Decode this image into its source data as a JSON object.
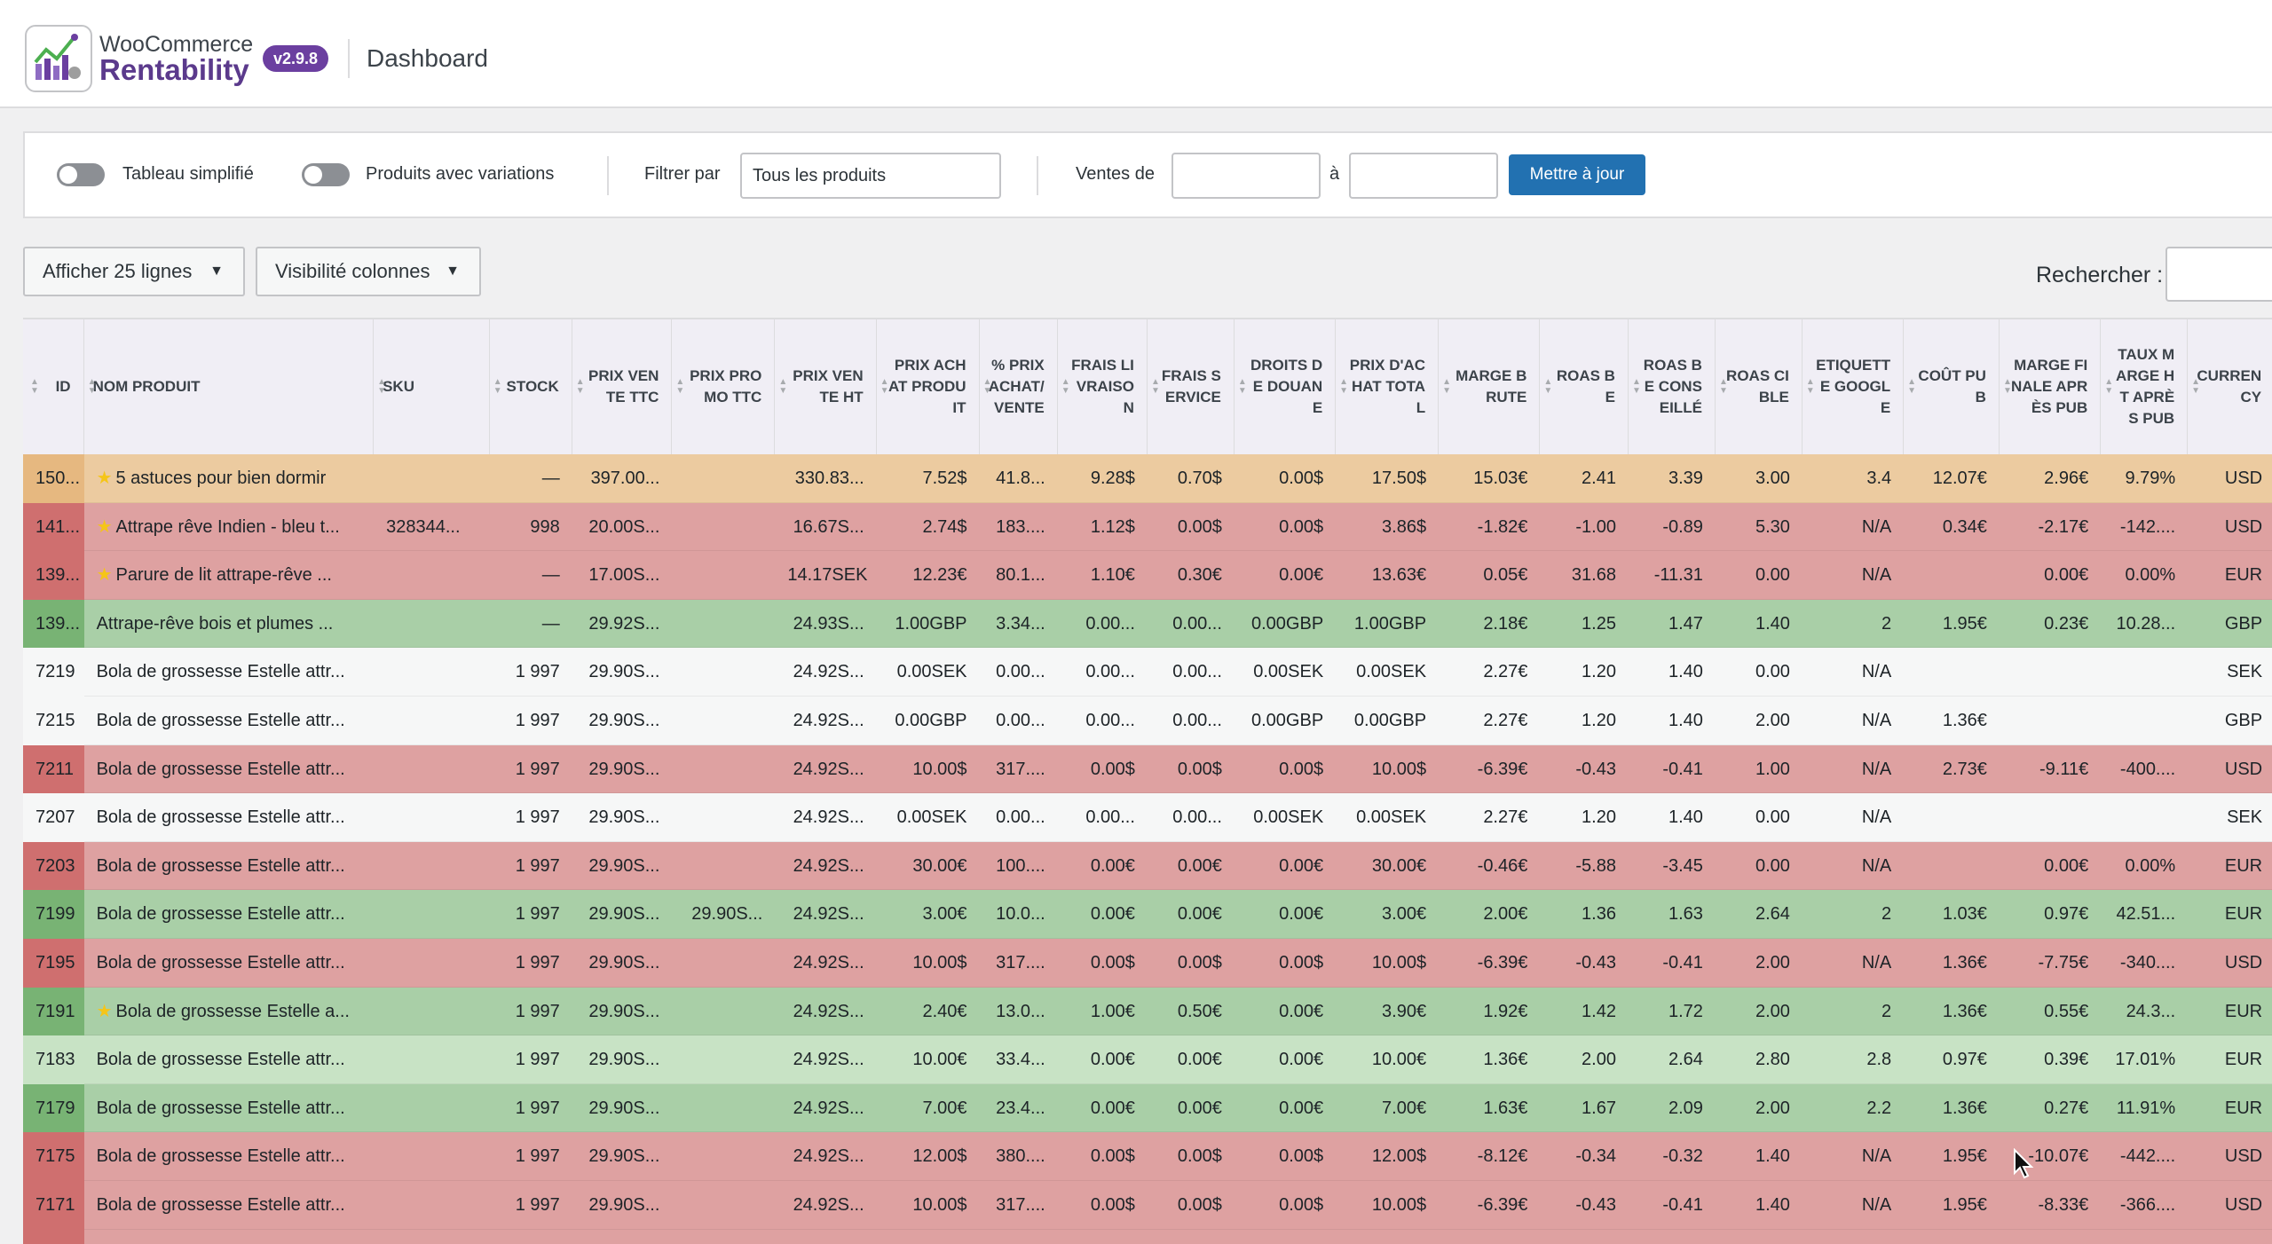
{
  "header": {
    "brand_top": "WooCommerce",
    "brand_bottom": "Rentability",
    "version": "v2.9.8",
    "page_title": "Dashboard"
  },
  "filters": {
    "toggle_simple": "Tableau simplifié",
    "toggle_variations": "Produits avec variations",
    "filter_label": "Filtrer par",
    "filter_value": "Tous les produits",
    "sales_from": "Ventes de",
    "sales_to": "à",
    "update_button": "Mettre à jour"
  },
  "controls": {
    "show_rows": "Afficher 25 lignes",
    "columns_visibility": "Visibilité colonnes",
    "search_label": "Rechercher :"
  },
  "colors": {
    "orange_row": "#eccba0",
    "red_row": "#dea1a1",
    "red_id": "#cf6f6f",
    "green_row": "#a9cfa7",
    "green_id": "#78b374",
    "lightgreen_row": "#c8e3c5",
    "white_row": "#f6f7f7",
    "brand": "#6b3fa0",
    "primary": "#2271b1"
  },
  "columns": [
    "ID",
    "NOM PRODUIT",
    "SKU",
    "STOCK",
    "PRIX VENTE TTC",
    "PRIX PROMO TTC",
    "PRIX VENTE HT",
    "PRIX ACHAT PRODUIT",
    "% PRIX ACHAT/VENTE",
    "FRAIS LIVRAISON",
    "FRAIS SERVICE",
    "DROITS DE DOUANE",
    "PRIX D'ACHAT TOTAL",
    "MARGE BRUTE",
    "ROAS BE",
    "ROAS BE CONSEILLÉ",
    "ROAS CIBLE",
    "ETIQUETTE GOOGLE",
    "COÛT PUB",
    "MARGE FINALE APRÈS PUB",
    "TAUX MARGE HT APRÈS PUB",
    "CURRENCY"
  ],
  "rows": [
    {
      "color": "orange",
      "star": true,
      "cells": [
        "150...",
        "5 astuces pour bien dormir",
        "",
        "—",
        "397.00...",
        "",
        "330.83...",
        "7.52$",
        "41.8...",
        "9.28$",
        "0.70$",
        "0.00$",
        "17.50$",
        "15.03€",
        "2.41",
        "3.39",
        "3.00",
        "3.4",
        "12.07€",
        "2.96€",
        "9.79%",
        "USD"
      ]
    },
    {
      "color": "red",
      "star": true,
      "cells": [
        "141...",
        "Attrape rêve Indien - bleu t...",
        "328344...",
        "998",
        "20.00S...",
        "",
        "16.67S...",
        "2.74$",
        "183....",
        "1.12$",
        "0.00$",
        "0.00$",
        "3.86$",
        "-1.82€",
        "-1.00",
        "-0.89",
        "5.30",
        "N/A",
        "0.34€",
        "-2.17€",
        "-142....",
        "USD"
      ]
    },
    {
      "color": "red",
      "star": true,
      "cells": [
        "139...",
        "Parure de lit attrape-rêve ...",
        "",
        "—",
        "17.00S...",
        "",
        "14.17SEK",
        "12.23€",
        "80.1...",
        "1.10€",
        "0.30€",
        "0.00€",
        "13.63€",
        "0.05€",
        "31.68",
        "-11.31",
        "0.00",
        "N/A",
        "",
        "0.00€",
        "0.00%",
        "EUR"
      ]
    },
    {
      "color": "green",
      "star": false,
      "cells": [
        "139...",
        "Attrape-rêve bois et plumes ...",
        "",
        "—",
        "29.92S...",
        "",
        "24.93S...",
        "1.00GBP",
        "3.34...",
        "0.00...",
        "0.00...",
        "0.00GBP",
        "1.00GBP",
        "2.18€",
        "1.25",
        "1.47",
        "1.40",
        "2",
        "1.95€",
        "0.23€",
        "10.28...",
        "GBP"
      ]
    },
    {
      "color": "white",
      "star": false,
      "cells": [
        "7219",
        "Bola de grossesse Estelle attr...",
        "",
        "1 997",
        "29.90S...",
        "",
        "24.92S...",
        "0.00SEK",
        "0.00...",
        "0.00...",
        "0.00...",
        "0.00SEK",
        "0.00SEK",
        "2.27€",
        "1.20",
        "1.40",
        "0.00",
        "N/A",
        "",
        "",
        "",
        "SEK"
      ]
    },
    {
      "color": "white",
      "star": false,
      "cells": [
        "7215",
        "Bola de grossesse Estelle attr...",
        "",
        "1 997",
        "29.90S...",
        "",
        "24.92S...",
        "0.00GBP",
        "0.00...",
        "0.00...",
        "0.00...",
        "0.00GBP",
        "0.00GBP",
        "2.27€",
        "1.20",
        "1.40",
        "2.00",
        "N/A",
        "1.36€",
        "",
        "",
        "GBP"
      ]
    },
    {
      "color": "red",
      "star": false,
      "cells": [
        "7211",
        "Bola de grossesse Estelle attr...",
        "",
        "1 997",
        "29.90S...",
        "",
        "24.92S...",
        "10.00$",
        "317....",
        "0.00$",
        "0.00$",
        "0.00$",
        "10.00$",
        "-6.39€",
        "-0.43",
        "-0.41",
        "1.00",
        "N/A",
        "2.73€",
        "-9.11€",
        "-400....",
        "USD"
      ]
    },
    {
      "color": "white",
      "star": false,
      "cells": [
        "7207",
        "Bola de grossesse Estelle attr...",
        "",
        "1 997",
        "29.90S...",
        "",
        "24.92S...",
        "0.00SEK",
        "0.00...",
        "0.00...",
        "0.00...",
        "0.00SEK",
        "0.00SEK",
        "2.27€",
        "1.20",
        "1.40",
        "0.00",
        "N/A",
        "",
        "",
        "",
        "SEK"
      ]
    },
    {
      "color": "red",
      "star": false,
      "cells": [
        "7203",
        "Bola de grossesse Estelle attr...",
        "",
        "1 997",
        "29.90S...",
        "",
        "24.92S...",
        "30.00€",
        "100....",
        "0.00€",
        "0.00€",
        "0.00€",
        "30.00€",
        "-0.46€",
        "-5.88",
        "-3.45",
        "0.00",
        "N/A",
        "",
        "0.00€",
        "0.00%",
        "EUR"
      ]
    },
    {
      "color": "green",
      "star": false,
      "cells": [
        "7199",
        "Bola de grossesse Estelle attr...",
        "",
        "1 997",
        "29.90S...",
        "29.90S...",
        "24.92S...",
        "3.00€",
        "10.0...",
        "0.00€",
        "0.00€",
        "0.00€",
        "3.00€",
        "2.00€",
        "1.36",
        "1.63",
        "2.64",
        "2",
        "1.03€",
        "0.97€",
        "42.51...",
        "EUR"
      ]
    },
    {
      "color": "red",
      "star": false,
      "cells": [
        "7195",
        "Bola de grossesse Estelle attr...",
        "",
        "1 997",
        "29.90S...",
        "",
        "24.92S...",
        "10.00$",
        "317....",
        "0.00$",
        "0.00$",
        "0.00$",
        "10.00$",
        "-6.39€",
        "-0.43",
        "-0.41",
        "2.00",
        "N/A",
        "1.36€",
        "-7.75€",
        "-340....",
        "USD"
      ]
    },
    {
      "color": "green",
      "star": true,
      "cells": [
        "7191",
        "Bola de grossesse Estelle a...",
        "",
        "1 997",
        "29.90S...",
        "",
        "24.92S...",
        "2.40€",
        "13.0...",
        "1.00€",
        "0.50€",
        "0.00€",
        "3.90€",
        "1.92€",
        "1.42",
        "1.72",
        "2.00",
        "2",
        "1.36€",
        "0.55€",
        "24.3...",
        "EUR"
      ]
    },
    {
      "color": "lightgreen",
      "star": false,
      "cells": [
        "7183",
        "Bola de grossesse Estelle attr...",
        "",
        "1 997",
        "29.90S...",
        "",
        "24.92S...",
        "10.00€",
        "33.4...",
        "0.00€",
        "0.00€",
        "0.00€",
        "10.00€",
        "1.36€",
        "2.00",
        "2.64",
        "2.80",
        "2.8",
        "0.97€",
        "0.39€",
        "17.01%",
        "EUR"
      ]
    },
    {
      "color": "green",
      "star": false,
      "cells": [
        "7179",
        "Bola de grossesse Estelle attr...",
        "",
        "1 997",
        "29.90S...",
        "",
        "24.92S...",
        "7.00€",
        "23.4...",
        "0.00€",
        "0.00€",
        "0.00€",
        "7.00€",
        "1.63€",
        "1.67",
        "2.09",
        "2.00",
        "2.2",
        "1.36€",
        "0.27€",
        "11.91%",
        "EUR"
      ]
    },
    {
      "color": "red",
      "star": false,
      "cells": [
        "7175",
        "Bola de grossesse Estelle attr...",
        "",
        "1 997",
        "29.90S...",
        "",
        "24.92S...",
        "12.00$",
        "380....",
        "0.00$",
        "0.00$",
        "0.00$",
        "12.00$",
        "-8.12€",
        "-0.34",
        "-0.32",
        "1.40",
        "N/A",
        "1.95€",
        "-10.07€",
        "-442....",
        "USD"
      ]
    },
    {
      "color": "red",
      "star": false,
      "cells": [
        "7171",
        "Bola de grossesse Estelle attr...",
        "",
        "1 997",
        "29.90S...",
        "",
        "24.92S...",
        "10.00$",
        "317....",
        "0.00$",
        "0.00$",
        "0.00$",
        "10.00$",
        "-6.39€",
        "-0.43",
        "-0.41",
        "1.40",
        "N/A",
        "1.95€",
        "-8.33€",
        "-366....",
        "USD"
      ]
    },
    {
      "color": "red",
      "star": false,
      "cells": [
        "",
        "",
        "",
        "",
        "",
        "",
        "",
        "",
        "",
        "",
        "",
        "",
        "",
        "",
        "",
        "",
        "",
        "",
        "",
        "",
        "",
        ""
      ]
    }
  ]
}
